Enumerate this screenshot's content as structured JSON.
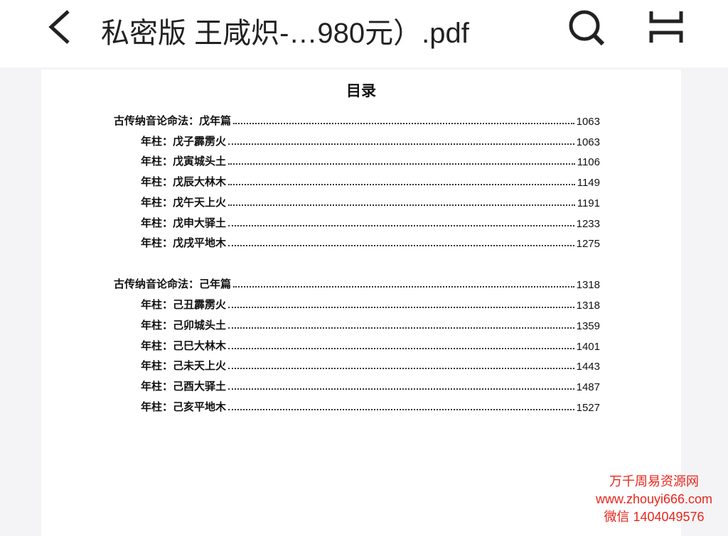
{
  "header": {
    "title": "私密版  王咸炽-…980元）.pdf"
  },
  "toc": {
    "title": "目录",
    "sections": [
      {
        "heading": "古传纳音论命法：戊年篇",
        "page": "1063",
        "entries": [
          {
            "label": "年柱：戊子霹雳火",
            "page": "1063"
          },
          {
            "label": "年柱：戊寅城头土",
            "page": "1106"
          },
          {
            "label": "年柱：戊辰大林木",
            "page": "1149"
          },
          {
            "label": "年柱：戊午天上火",
            "page": "1191"
          },
          {
            "label": "年柱：戊申大驿土",
            "page": "1233"
          },
          {
            "label": "年柱：戊戌平地木",
            "page": "1275"
          }
        ]
      },
      {
        "heading": "古传纳音论命法：己年篇",
        "page": "1318",
        "entries": [
          {
            "label": "年柱：己丑霹雳火",
            "page": "1318"
          },
          {
            "label": "年柱：己卯城头土",
            "page": "1359"
          },
          {
            "label": "年柱：己巳大林木",
            "page": "1401"
          },
          {
            "label": "年柱：己未天上火",
            "page": "1443"
          },
          {
            "label": "年柱：己酉大驿土",
            "page": "1487"
          },
          {
            "label": "年柱：己亥平地木",
            "page": "1527"
          }
        ]
      }
    ]
  },
  "watermark": {
    "lines": [
      "万千周易资源网",
      "www.zhouyi666.com",
      "微信 1404049576"
    ]
  }
}
